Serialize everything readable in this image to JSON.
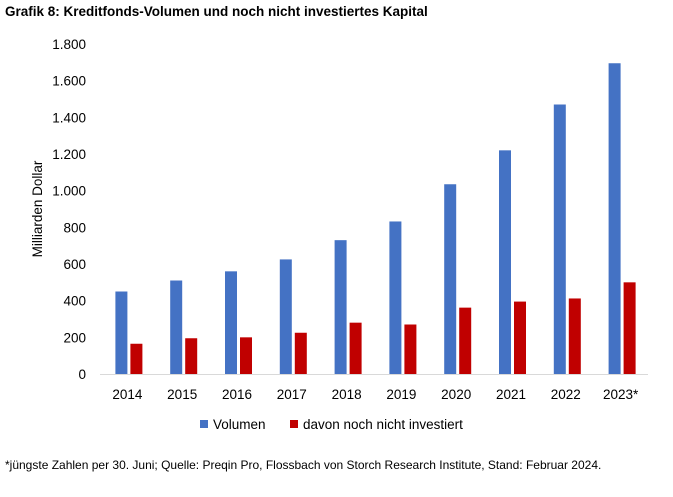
{
  "chart_data": {
    "type": "bar",
    "title": "Grafik 8: Kreditfonds-Volumen und noch nicht investiertes Kapital",
    "xlabel": "",
    "ylabel": "Milliarden Dollar",
    "ylim": [
      0,
      1800
    ],
    "yticks": [
      {
        "value": 0,
        "label": "0"
      },
      {
        "value": 200,
        "label": "200"
      },
      {
        "value": 400,
        "label": "400"
      },
      {
        "value": 600,
        "label": "600"
      },
      {
        "value": 800,
        "label": "800"
      },
      {
        "value": 1000,
        "label": "1.000"
      },
      {
        "value": 1200,
        "label": "1.200"
      },
      {
        "value": 1400,
        "label": "1.400"
      },
      {
        "value": 1600,
        "label": "1.600"
      },
      {
        "value": 1800,
        "label": "1.800"
      }
    ],
    "categories": [
      "2014",
      "2015",
      "2016",
      "2017",
      "2018",
      "2019",
      "2020",
      "2021",
      "2022",
      "2023*"
    ],
    "series": [
      {
        "name": "Volumen",
        "color": "#4472C4",
        "values": [
          450,
          510,
          560,
          625,
          730,
          832,
          1035,
          1220,
          1470,
          1695
        ]
      },
      {
        "name": "davon noch nicht investiert",
        "color": "#C00000",
        "values": [
          165,
          195,
          200,
          225,
          280,
          270,
          362,
          395,
          412,
          500
        ]
      }
    ],
    "legend": "bottom",
    "grid": false
  },
  "footnote": "*jüngste Zahlen per 30. Juni; Quelle: Preqin Pro, Flossbach von Storch Research Institute, Stand: Februar 2024."
}
